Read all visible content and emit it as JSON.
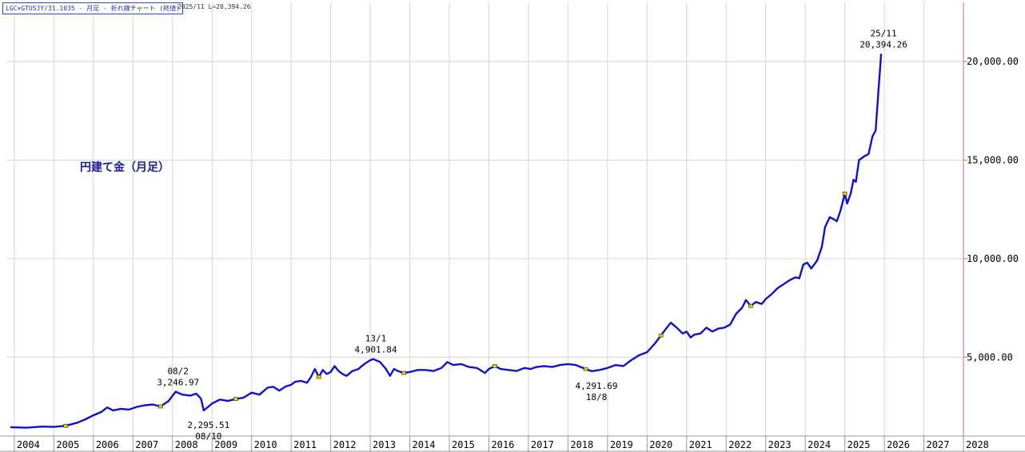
{
  "header": {
    "symbol_caption": "LGC×GTUSJY/31.1035 - 月足 - 折れ線チャート (終値)",
    "last_value": "2025/11 L=20,394.26"
  },
  "chart_data": {
    "type": "line",
    "title": "円建て金（月足）",
    "xlabel": "",
    "ylabel": "",
    "x_tick_labels": [
      "2004",
      "2005",
      "2006",
      "2007",
      "2008",
      "2009",
      "2010",
      "2011",
      "2012",
      "2013",
      "2014",
      "2015",
      "2016",
      "2017",
      "2018",
      "2019",
      "2020",
      "2021",
      "2022",
      "2023",
      "2024",
      "2025",
      "2026",
      "2027",
      "2028"
    ],
    "y_ticks": [
      5000,
      10000,
      15000,
      20000
    ],
    "y_tick_labels": [
      "5,000.00",
      "10,000.00",
      "15,000.00",
      "20,000.00"
    ],
    "ylim": [
      1000,
      23000
    ],
    "xlim": [
      2003.8,
      2028.0
    ],
    "grid": true,
    "colors": {
      "line": "#1010d0",
      "grid": "#d6d6d6",
      "axis": "#c07070",
      "marker": "#e8d000"
    },
    "series": [
      {
        "values": [
          [
            2003.9,
            1450
          ],
          [
            2004.3,
            1420
          ],
          [
            2004.7,
            1480
          ],
          [
            2005.0,
            1460
          ],
          [
            2005.3,
            1520
          ],
          [
            2005.6,
            1680
          ],
          [
            2005.8,
            1850
          ],
          [
            2006.0,
            2050
          ],
          [
            2006.2,
            2220
          ],
          [
            2006.35,
            2450
          ],
          [
            2006.5,
            2300
          ],
          [
            2006.7,
            2380
          ],
          [
            2006.9,
            2340
          ],
          [
            2007.1,
            2480
          ],
          [
            2007.3,
            2560
          ],
          [
            2007.5,
            2600
          ],
          [
            2007.7,
            2500
          ],
          [
            2007.9,
            2780
          ],
          [
            2008.08,
            3246.97
          ],
          [
            2008.25,
            3100
          ],
          [
            2008.45,
            3050
          ],
          [
            2008.6,
            3150
          ],
          [
            2008.72,
            2900
          ],
          [
            2008.79,
            2295.51
          ],
          [
            2008.9,
            2480
          ],
          [
            2009.0,
            2650
          ],
          [
            2009.2,
            2850
          ],
          [
            2009.4,
            2780
          ],
          [
            2009.6,
            2880
          ],
          [
            2009.8,
            2950
          ],
          [
            2010.0,
            3200
          ],
          [
            2010.2,
            3100
          ],
          [
            2010.4,
            3450
          ],
          [
            2010.55,
            3500
          ],
          [
            2010.7,
            3300
          ],
          [
            2010.85,
            3500
          ],
          [
            2011.0,
            3600
          ],
          [
            2011.1,
            3750
          ],
          [
            2011.25,
            3800
          ],
          [
            2011.4,
            3700
          ],
          [
            2011.5,
            4000
          ],
          [
            2011.6,
            4400
          ],
          [
            2011.7,
            4000
          ],
          [
            2011.8,
            4350
          ],
          [
            2011.9,
            4150
          ],
          [
            2012.0,
            4250
          ],
          [
            2012.1,
            4550
          ],
          [
            2012.2,
            4300
          ],
          [
            2012.3,
            4150
          ],
          [
            2012.4,
            4050
          ],
          [
            2012.55,
            4300
          ],
          [
            2012.7,
            4400
          ],
          [
            2012.85,
            4650
          ],
          [
            2013.0,
            4850
          ],
          [
            2013.08,
            4901.84
          ],
          [
            2013.25,
            4750
          ],
          [
            2013.4,
            4400
          ],
          [
            2013.5,
            4050
          ],
          [
            2013.6,
            4400
          ],
          [
            2013.7,
            4300
          ],
          [
            2013.85,
            4200
          ],
          [
            2014.0,
            4250
          ],
          [
            2014.2,
            4350
          ],
          [
            2014.4,
            4350
          ],
          [
            2014.6,
            4300
          ],
          [
            2014.8,
            4450
          ],
          [
            2014.95,
            4750
          ],
          [
            2015.1,
            4600
          ],
          [
            2015.3,
            4650
          ],
          [
            2015.5,
            4500
          ],
          [
            2015.7,
            4450
          ],
          [
            2015.9,
            4200
          ],
          [
            2016.0,
            4400
          ],
          [
            2016.15,
            4550
          ],
          [
            2016.3,
            4400
          ],
          [
            2016.5,
            4350
          ],
          [
            2016.7,
            4300
          ],
          [
            2016.9,
            4450
          ],
          [
            2017.05,
            4400
          ],
          [
            2017.2,
            4500
          ],
          [
            2017.4,
            4550
          ],
          [
            2017.6,
            4500
          ],
          [
            2017.8,
            4600
          ],
          [
            2018.0,
            4650
          ],
          [
            2018.2,
            4600
          ],
          [
            2018.45,
            4400
          ],
          [
            2018.6,
            4291.69
          ],
          [
            2018.8,
            4350
          ],
          [
            2019.0,
            4450
          ],
          [
            2019.2,
            4600
          ],
          [
            2019.4,
            4550
          ],
          [
            2019.6,
            4850
          ],
          [
            2019.8,
            5100
          ],
          [
            2020.0,
            5250
          ],
          [
            2020.2,
            5700
          ],
          [
            2020.35,
            6100
          ],
          [
            2020.5,
            6500
          ],
          [
            2020.6,
            6750
          ],
          [
            2020.75,
            6500
          ],
          [
            2020.9,
            6200
          ],
          [
            2021.0,
            6300
          ],
          [
            2021.1,
            6000
          ],
          [
            2021.2,
            6150
          ],
          [
            2021.35,
            6200
          ],
          [
            2021.5,
            6500
          ],
          [
            2021.65,
            6300
          ],
          [
            2021.8,
            6450
          ],
          [
            2021.95,
            6500
          ],
          [
            2022.1,
            6650
          ],
          [
            2022.25,
            7200
          ],
          [
            2022.4,
            7500
          ],
          [
            2022.5,
            7900
          ],
          [
            2022.62,
            7600
          ],
          [
            2022.75,
            7800
          ],
          [
            2022.9,
            7700
          ],
          [
            2023.0,
            7950
          ],
          [
            2023.15,
            8200
          ],
          [
            2023.3,
            8500
          ],
          [
            2023.45,
            8700
          ],
          [
            2023.6,
            8900
          ],
          [
            2023.75,
            9050
          ],
          [
            2023.85,
            9000
          ],
          [
            2023.95,
            9700
          ],
          [
            2024.05,
            9800
          ],
          [
            2024.15,
            9500
          ],
          [
            2024.3,
            9900
          ],
          [
            2024.42,
            10600
          ],
          [
            2024.5,
            11600
          ],
          [
            2024.62,
            12100
          ],
          [
            2024.72,
            12000
          ],
          [
            2024.8,
            11900
          ],
          [
            2024.9,
            12500
          ],
          [
            2025.0,
            13300
          ],
          [
            2025.06,
            12800
          ],
          [
            2025.15,
            13300
          ],
          [
            2025.22,
            14000
          ],
          [
            2025.28,
            13900
          ],
          [
            2025.36,
            15000
          ],
          [
            2025.5,
            15200
          ],
          [
            2025.6,
            15300
          ],
          [
            2025.7,
            16200
          ],
          [
            2025.78,
            16500
          ],
          [
            2025.85,
            18500
          ],
          [
            2025.92,
            20394.26
          ]
        ]
      }
    ],
    "annotations": [
      {
        "date": "08/2",
        "value": "3,246.97",
        "x": 2008.08,
        "y": 3246.97,
        "pos": "above"
      },
      {
        "date": "08/10",
        "value": "2,295.51",
        "x": 2008.79,
        "y": 2295.51,
        "pos": "below"
      },
      {
        "date": "13/1",
        "value": "4,901.84",
        "x": 2013.08,
        "y": 4901.84,
        "pos": "above"
      },
      {
        "date": "18/8",
        "value": "4,291.69",
        "x": 2018.6,
        "y": 4291.69,
        "pos": "below"
      },
      {
        "date": "25/11",
        "value": "20,394.26",
        "x": 2025.92,
        "y": 20394.26,
        "pos": "above"
      }
    ],
    "markers_x": [
      2005.3,
      2007.7,
      2009.6,
      2011.7,
      2013.85,
      2016.15,
      2018.45,
      2020.35,
      2022.62,
      2025.0
    ]
  }
}
